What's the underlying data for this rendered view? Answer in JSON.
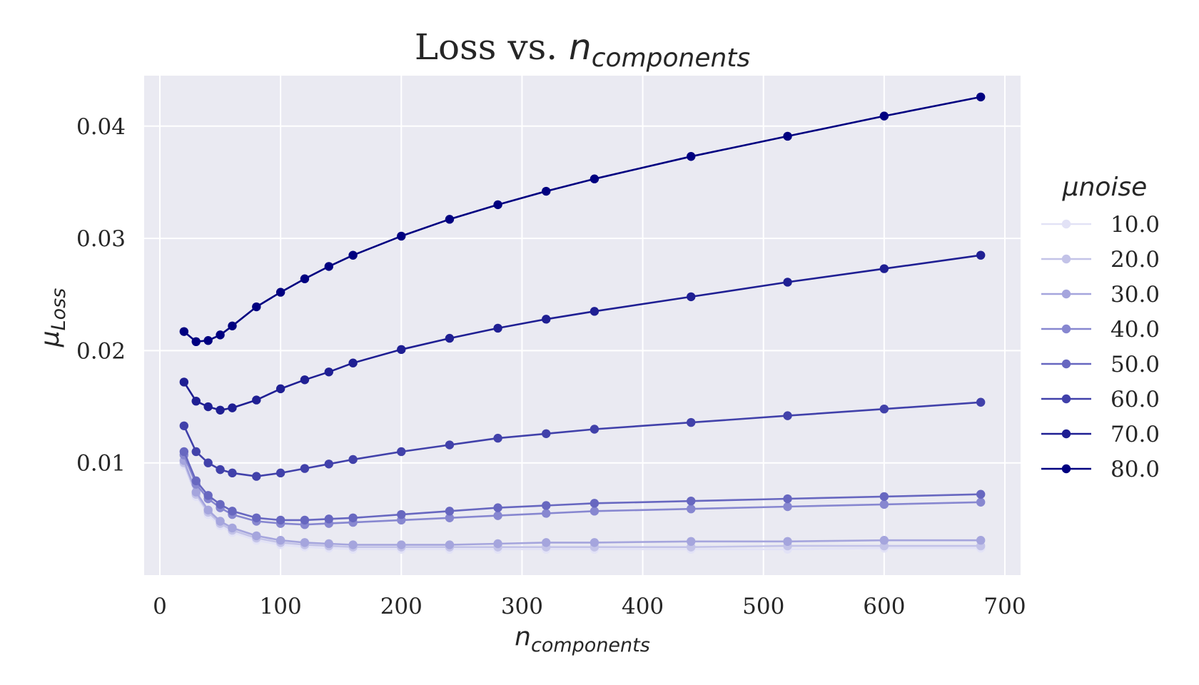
{
  "chart_data": {
    "type": "line",
    "title": {
      "main": "Loss vs. ",
      "math_base": "n",
      "math_sub": "components"
    },
    "xlabel": {
      "base": "n",
      "sub": "components"
    },
    "ylabel": {
      "base": "μ",
      "sub": "Loss"
    },
    "xlim": [
      -13,
      713
    ],
    "ylim": [
      0,
      0.0445
    ],
    "xticks": [
      0,
      100,
      200,
      300,
      400,
      500,
      600,
      700
    ],
    "xtick_labels": [
      "0",
      "100",
      "200",
      "300",
      "400",
      "500",
      "600",
      "700"
    ],
    "yticks": [
      0.01,
      0.02,
      0.03,
      0.04
    ],
    "ytick_labels": [
      "0.01",
      "0.02",
      "0.03",
      "0.04"
    ],
    "grid": true,
    "background_color": "#eaeaf2",
    "legend": {
      "title": "μnoise",
      "placement": "right, outside"
    },
    "x": [
      20,
      30,
      40,
      50,
      60,
      80,
      100,
      120,
      140,
      160,
      200,
      240,
      280,
      320,
      360,
      440,
      520,
      600,
      680
    ],
    "series": [
      {
        "name": "10.0",
        "color": "#e2e2f6",
        "values": [
          0.0098,
          0.007,
          0.0054,
          0.0044,
          0.0038,
          0.0031,
          0.0027,
          0.0025,
          0.0024,
          0.0023,
          0.0023,
          0.0023,
          0.0023,
          0.0023,
          0.0023,
          0.0023,
          0.0023,
          0.0024,
          0.0024
        ]
      },
      {
        "name": "20.0",
        "color": "#c3c3e8",
        "values": [
          0.01,
          0.0072,
          0.0056,
          0.0046,
          0.004,
          0.0033,
          0.0029,
          0.0027,
          0.0026,
          0.0025,
          0.0025,
          0.0025,
          0.0025,
          0.0025,
          0.0025,
          0.0025,
          0.0026,
          0.0026,
          0.0026
        ]
      },
      {
        "name": "30.0",
        "color": "#a5a5dd",
        "values": [
          0.0102,
          0.0074,
          0.0058,
          0.0048,
          0.0042,
          0.0035,
          0.0031,
          0.0029,
          0.0028,
          0.0027,
          0.0027,
          0.0027,
          0.0028,
          0.0029,
          0.0029,
          0.003,
          0.003,
          0.0031,
          0.0031
        ]
      },
      {
        "name": "40.0",
        "color": "#8787d0",
        "values": [
          0.0107,
          0.0081,
          0.0068,
          0.006,
          0.0054,
          0.0048,
          0.0046,
          0.0045,
          0.0046,
          0.0047,
          0.0049,
          0.0051,
          0.0053,
          0.0055,
          0.0057,
          0.0059,
          0.0061,
          0.0063,
          0.0065
        ]
      },
      {
        "name": "50.0",
        "color": "#6767c0",
        "values": [
          0.011,
          0.0084,
          0.0071,
          0.0063,
          0.0057,
          0.0051,
          0.0049,
          0.0049,
          0.005,
          0.0051,
          0.0054,
          0.0057,
          0.006,
          0.0062,
          0.0064,
          0.0066,
          0.0068,
          0.007,
          0.0072
        ]
      },
      {
        "name": "60.0",
        "color": "#4141aa",
        "values": [
          0.0133,
          0.011,
          0.01,
          0.0094,
          0.0091,
          0.0088,
          0.0091,
          0.0095,
          0.0099,
          0.0103,
          0.011,
          0.0116,
          0.0122,
          0.0126,
          0.013,
          0.0136,
          0.0142,
          0.0148,
          0.0154
        ]
      },
      {
        "name": "70.0",
        "color": "#1f1f93",
        "values": [
          0.0172,
          0.0155,
          0.015,
          0.0147,
          0.0149,
          0.0156,
          0.0166,
          0.0174,
          0.0181,
          0.0189,
          0.0201,
          0.0211,
          0.022,
          0.0228,
          0.0235,
          0.0248,
          0.0261,
          0.0273,
          0.0285
        ]
      },
      {
        "name": "80.0",
        "color": "#000080",
        "values": [
          0.0217,
          0.0208,
          0.0209,
          0.0214,
          0.0222,
          0.0239,
          0.0252,
          0.0264,
          0.0275,
          0.0285,
          0.0302,
          0.0317,
          0.033,
          0.0342,
          0.0353,
          0.0373,
          0.0391,
          0.0409,
          0.0426
        ]
      }
    ]
  }
}
